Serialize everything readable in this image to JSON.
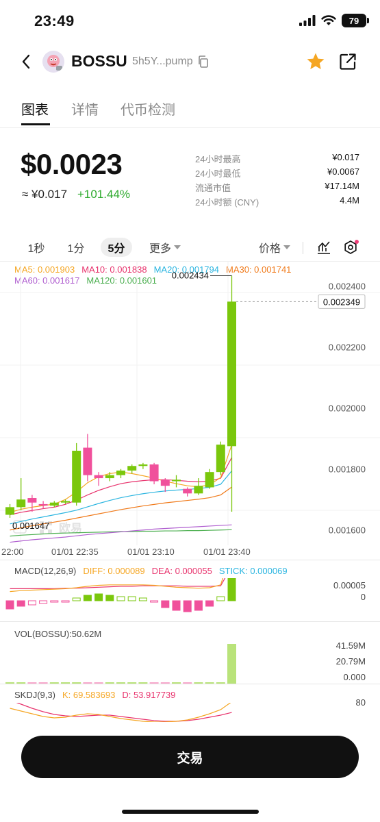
{
  "status": {
    "time": "23:49",
    "battery": "79"
  },
  "header": {
    "name": "BOSSU",
    "address": "5h5Y...pump"
  },
  "tabs": [
    {
      "label": "图表"
    },
    {
      "label": "详情"
    },
    {
      "label": "代币检测"
    }
  ],
  "price": {
    "usd": "$0.0023",
    "cny": "≈ ¥0.017",
    "change": "+101.44%"
  },
  "stats": [
    {
      "label": "24小时最高",
      "value": "¥0.017"
    },
    {
      "label": "24小时最低",
      "value": "¥0.0067"
    },
    {
      "label": "流通市值",
      "value": "¥17.14M"
    },
    {
      "label": "24小时额 (CNY)",
      "value": "4.4M"
    }
  ],
  "toolbar": {
    "tf_1s": "1秒",
    "tf_1m": "1分",
    "tf_5m": "5分",
    "more": "更多",
    "price_type": "价格"
  },
  "ma_legend": {
    "ma5": "MA5: 0.001903",
    "ma10": "MA10: 0.001838",
    "ma20": "MA20: 0.001794",
    "ma30": "MA30: 0.001741",
    "ma60": "MA60: 0.001617",
    "ma120": "MA120: 0.001601"
  },
  "chart": {
    "y_ticks": [
      "0.002400",
      "0.002200",
      "0.002000",
      "0.001800",
      "0.001600"
    ],
    "current_price": "0.002349",
    "high_marker": "0.002434",
    "low_marker": "0.001647",
    "watermark": "欧易",
    "time_labels": [
      "22:00",
      "01/01 22:35",
      "01/01 23:10",
      "01/01 23:40"
    ]
  },
  "macd": {
    "title": "MACD(12,26,9)",
    "diff": "DIFF: 0.000089",
    "dea": "DEA: 0.000055",
    "stick": "STICK: 0.000069",
    "ticks": [
      "0.00005",
      "0"
    ]
  },
  "vol": {
    "title": "VOL(BOSSU):50.62M",
    "ticks": [
      "41.59M",
      "20.79M",
      "0.000"
    ]
  },
  "skdj": {
    "title": "SKDJ(9,3)",
    "k": "K: 69.583693",
    "d": "D: 53.917739",
    "tick": "80"
  },
  "trade_button": "交易",
  "colors": {
    "up": "#7ac70c",
    "down": "#f0509b",
    "ma5": "#f5a623",
    "ma10": "#e8336d",
    "ma20": "#2bb5e0",
    "ma30": "#f07a1a",
    "ma60": "#b05fd0",
    "ma120": "#4caf50",
    "star": "#f5a623"
  },
  "chart_data": {
    "type": "candlestick",
    "interval": "5分",
    "ylim": [
      0.00155,
      0.00248
    ],
    "candles": [
      {
        "o": 0.00165,
        "h": 0.001685,
        "l": 0.00164,
        "c": 0.001675
      },
      {
        "o": 0.001675,
        "h": 0.00177,
        "l": 0.001665,
        "c": 0.0017
      },
      {
        "o": 0.001705,
        "h": 0.001715,
        "l": 0.00166,
        "c": 0.00169
      },
      {
        "o": 0.001685,
        "h": 0.001695,
        "l": 0.00167,
        "c": 0.00168
      },
      {
        "o": 0.00168,
        "h": 0.001695,
        "l": 0.001675,
        "c": 0.00169
      },
      {
        "o": 0.00169,
        "h": 0.0017,
        "l": 0.001685,
        "c": 0.001695
      },
      {
        "o": 0.00169,
        "h": 0.001885,
        "l": 0.00168,
        "c": 0.00186
      },
      {
        "o": 0.00187,
        "h": 0.001915,
        "l": 0.00176,
        "c": 0.00178
      },
      {
        "o": 0.00178,
        "h": 0.00179,
        "l": 0.001745,
        "c": 0.00177
      },
      {
        "o": 0.00177,
        "h": 0.00179,
        "l": 0.00176,
        "c": 0.00178
      },
      {
        "o": 0.00178,
        "h": 0.0018,
        "l": 0.00177,
        "c": 0.001795
      },
      {
        "o": 0.001795,
        "h": 0.001815,
        "l": 0.001785,
        "c": 0.00181
      },
      {
        "o": 0.00181,
        "h": 0.00182,
        "l": 0.0018,
        "c": 0.001815
      },
      {
        "o": 0.001815,
        "h": 0.00182,
        "l": 0.00175,
        "c": 0.00176
      },
      {
        "o": 0.001765,
        "h": 0.00177,
        "l": 0.001725,
        "c": 0.001745
      },
      {
        "o": 0.00176,
        "h": 0.00178,
        "l": 0.00174,
        "c": 0.001765
      },
      {
        "o": 0.001735,
        "h": 0.00174,
        "l": 0.00171,
        "c": 0.00172
      },
      {
        "o": 0.00172,
        "h": 0.00177,
        "l": 0.001715,
        "c": 0.001745
      },
      {
        "o": 0.00174,
        "h": 0.0018,
        "l": 0.001735,
        "c": 0.00179
      },
      {
        "o": 0.00179,
        "h": 0.00189,
        "l": 0.00178,
        "c": 0.00188
      },
      {
        "o": 0.001875,
        "h": 0.002434,
        "l": 0.00166,
        "c": 0.002349
      }
    ],
    "ma": {
      "ma5": [
        0.001658,
        0.001668,
        0.001675,
        0.00168,
        0.001685,
        0.0017,
        0.001725,
        0.001755,
        0.001775,
        0.001785,
        0.00179,
        0.001785,
        0.001778,
        0.00177,
        0.00176,
        0.001752,
        0.001745,
        0.001742,
        0.001748,
        0.001772,
        0.00188
      ],
      "ma10": [
        0.00165,
        0.001658,
        0.001664,
        0.00167,
        0.001675,
        0.001684,
        0.001698,
        0.001715,
        0.00173,
        0.001742,
        0.001752,
        0.001758,
        0.001762,
        0.001765,
        0.001765,
        0.001763,
        0.00176,
        0.001758,
        0.00176,
        0.00177,
        0.001838
      ],
      "ma20": [
        0.00162,
        0.001628,
        0.001636,
        0.001643,
        0.00165,
        0.001657,
        0.001665,
        0.001676,
        0.001687,
        0.001697,
        0.001706,
        0.001713,
        0.001719,
        0.001724,
        0.001728,
        0.001731,
        0.001733,
        0.001736,
        0.00174,
        0.00175,
        0.001794
      ],
      "ma30": [
        0.0016,
        0.001607,
        0.001614,
        0.00162,
        0.001626,
        0.001632,
        0.001639,
        0.001646,
        0.001653,
        0.00166,
        0.001667,
        0.001673,
        0.001679,
        0.001684,
        0.001689,
        0.001693,
        0.001697,
        0.001701,
        0.001706,
        0.001715,
        0.001741
      ],
      "ma60": [
        0.00156,
        0.001564,
        0.001568,
        0.001571,
        0.001574,
        0.001577,
        0.001581,
        0.001585,
        0.001588,
        0.001591,
        0.001594,
        0.001597,
        0.0016,
        0.001603,
        0.001605,
        0.001607,
        0.001609,
        0.001611,
        0.001613,
        0.001615,
        0.001617
      ],
      "ma120": [
        0.00158,
        0.001583,
        0.001585,
        0.001587,
        0.001589,
        0.00159,
        0.001591,
        0.001592,
        0.001593,
        0.001594,
        0.001595,
        0.001595,
        0.001596,
        0.001596,
        0.001597,
        0.001597,
        0.001598,
        0.001598,
        0.001599,
        0.0016,
        0.001601
      ]
    },
    "macd": {
      "dif": [
        2e-06,
        4e-06,
        5e-06,
        6e-06,
        7e-06,
        8e-06,
        1e-05,
        1.3e-05,
        1.5e-05,
        1.6e-05,
        1.6e-05,
        1.6e-05,
        1.6e-05,
        1.5e-05,
        1.3e-05,
        1.1e-05,
        1e-05,
        9e-06,
        1e-05,
        1.6e-05,
        8.9e-05
      ],
      "dea": [
        8e-06,
        8e-06,
        8e-06,
        8e-06,
        8e-06,
        9e-06,
        9e-06,
        1e-05,
        1.1e-05,
        1.2e-05,
        1.3e-05,
        1.3e-05,
        1.4e-05,
        1.4e-05,
        1.4e-05,
        1.4e-05,
        1.3e-05,
        1.3e-05,
        1.3e-05,
        1.4e-05,
        5.5e-05
      ],
      "hist": [
        -6e-06,
        -4e-06,
        -3e-06,
        -2e-06,
        -1e-06,
        -1e-06,
        2e-06,
        4e-06,
        5e-06,
        4e-06,
        3e-06,
        3e-06,
        2e-06,
        -1e-06,
        -5e-06,
        -7e-06,
        -8e-06,
        -7e-06,
        -4e-06,
        3e-06,
        6.9e-05
      ]
    },
    "volume": [
      1.8,
      0.6,
      0.5,
      0.4,
      0.3,
      0.4,
      1.5,
      1.6,
      0.5,
      0.4,
      0.5,
      0.4,
      0.3,
      0.4,
      0.5,
      0.4,
      0.5,
      0.4,
      0.5,
      1.0,
      50.62
    ],
    "skdj": {
      "k": [
        60,
        56,
        52,
        48,
        46,
        47,
        50,
        52,
        51,
        48,
        45,
        43,
        41,
        40,
        40,
        41,
        43,
        47,
        52,
        58,
        69.583693
      ],
      "d": [
        72,
        66,
        60,
        55,
        51,
        49,
        48,
        49,
        50,
        50,
        48,
        46,
        44,
        42,
        41,
        41,
        42,
        44,
        47,
        50,
        53.917739
      ]
    }
  }
}
